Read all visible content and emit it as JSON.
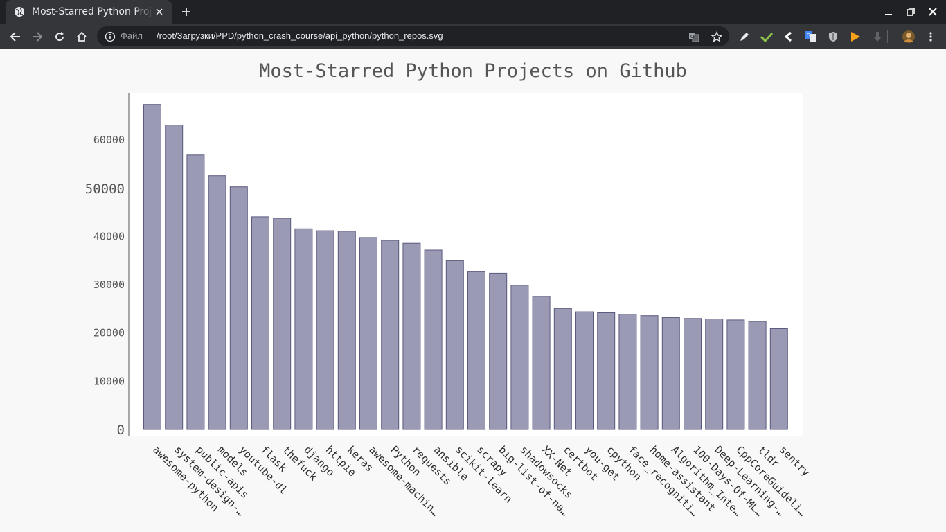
{
  "browser": {
    "tab_title": "Most-Starred Python Projects on Github",
    "new_tab_symbol": "+",
    "scheme_label": "Файл",
    "url": "/root/Загрузки/PPD/python_crash_course/api_python/python_repos.svg",
    "icons": {
      "favicon": "globe-icon",
      "close": "close-icon",
      "back": "back-arrow-icon",
      "forward": "forward-arrow-icon",
      "reload": "reload-icon",
      "home": "home-icon",
      "info": "info-icon",
      "translate": "translate-icon",
      "bookmark": "star-icon",
      "extensions": [
        "pen-icon",
        "check-icon",
        "chevron-left-icon",
        "google-translate-icon",
        "shield-icon",
        "play-icon",
        "download-icon",
        "avatar-icon",
        "menu-icon"
      ]
    },
    "colors": {
      "chrome_dark": "#202124",
      "chrome_mid": "#35363a"
    }
  },
  "chart_data": {
    "type": "bar",
    "title": "Most-Starred Python Projects on Github",
    "categories": [
      "awesome-python",
      "system-design-…",
      "public-apis",
      "models",
      "youtube-dl",
      "flask",
      "thefuck",
      "django",
      "httpie",
      "keras",
      "awesome-machin…",
      "Python",
      "requests",
      "ansible",
      "scikit-learn",
      "scrapy",
      "big-list-of-na…",
      "shadowsocks",
      "XX-Net",
      "certbot",
      "you-get",
      "cpython",
      "face_recogniti…",
      "home-assistant",
      "Algorithm_Inte…",
      "100-Days-Of-ML…",
      "Deep-Learning-…",
      "CppCoreGuideli…",
      "tldr",
      "sentry"
    ],
    "values": [
      67400,
      63100,
      56900,
      52600,
      50300,
      44100,
      43800,
      41600,
      41200,
      41100,
      39800,
      39200,
      38600,
      37200,
      35000,
      32800,
      32400,
      29900,
      27600,
      25100,
      24400,
      24200,
      23900,
      23600,
      23200,
      23000,
      22900,
      22700,
      22400,
      20900
    ],
    "yticks": [
      0,
      10000,
      20000,
      30000,
      40000,
      50000,
      60000
    ],
    "ylim": [
      0,
      68500
    ],
    "xlabel": "",
    "ylabel": "",
    "grid": false,
    "colors": {
      "bar_fill": "#9a9ab4",
      "bar_stroke": "#5c5a7e",
      "plot_bg": "#ffffff",
      "page_bg": "#f8f8f8",
      "text": "#555555"
    }
  }
}
